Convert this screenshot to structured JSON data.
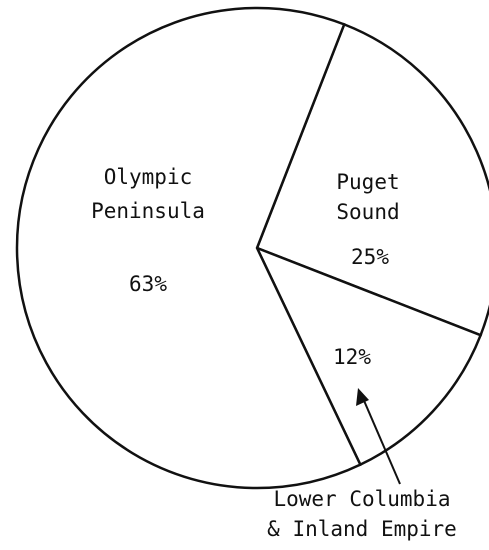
{
  "chart_data": {
    "type": "pie",
    "categories": [
      "Puget\nSound",
      "Lower Columbia\n& Inland Empire",
      "Olympic\nPeninsula"
    ],
    "values": [
      25,
      12,
      63
    ],
    "value_labels": [
      "25%",
      "12%",
      "63%"
    ],
    "color": "#ffffff",
    "edge_color": "#111111"
  }
}
